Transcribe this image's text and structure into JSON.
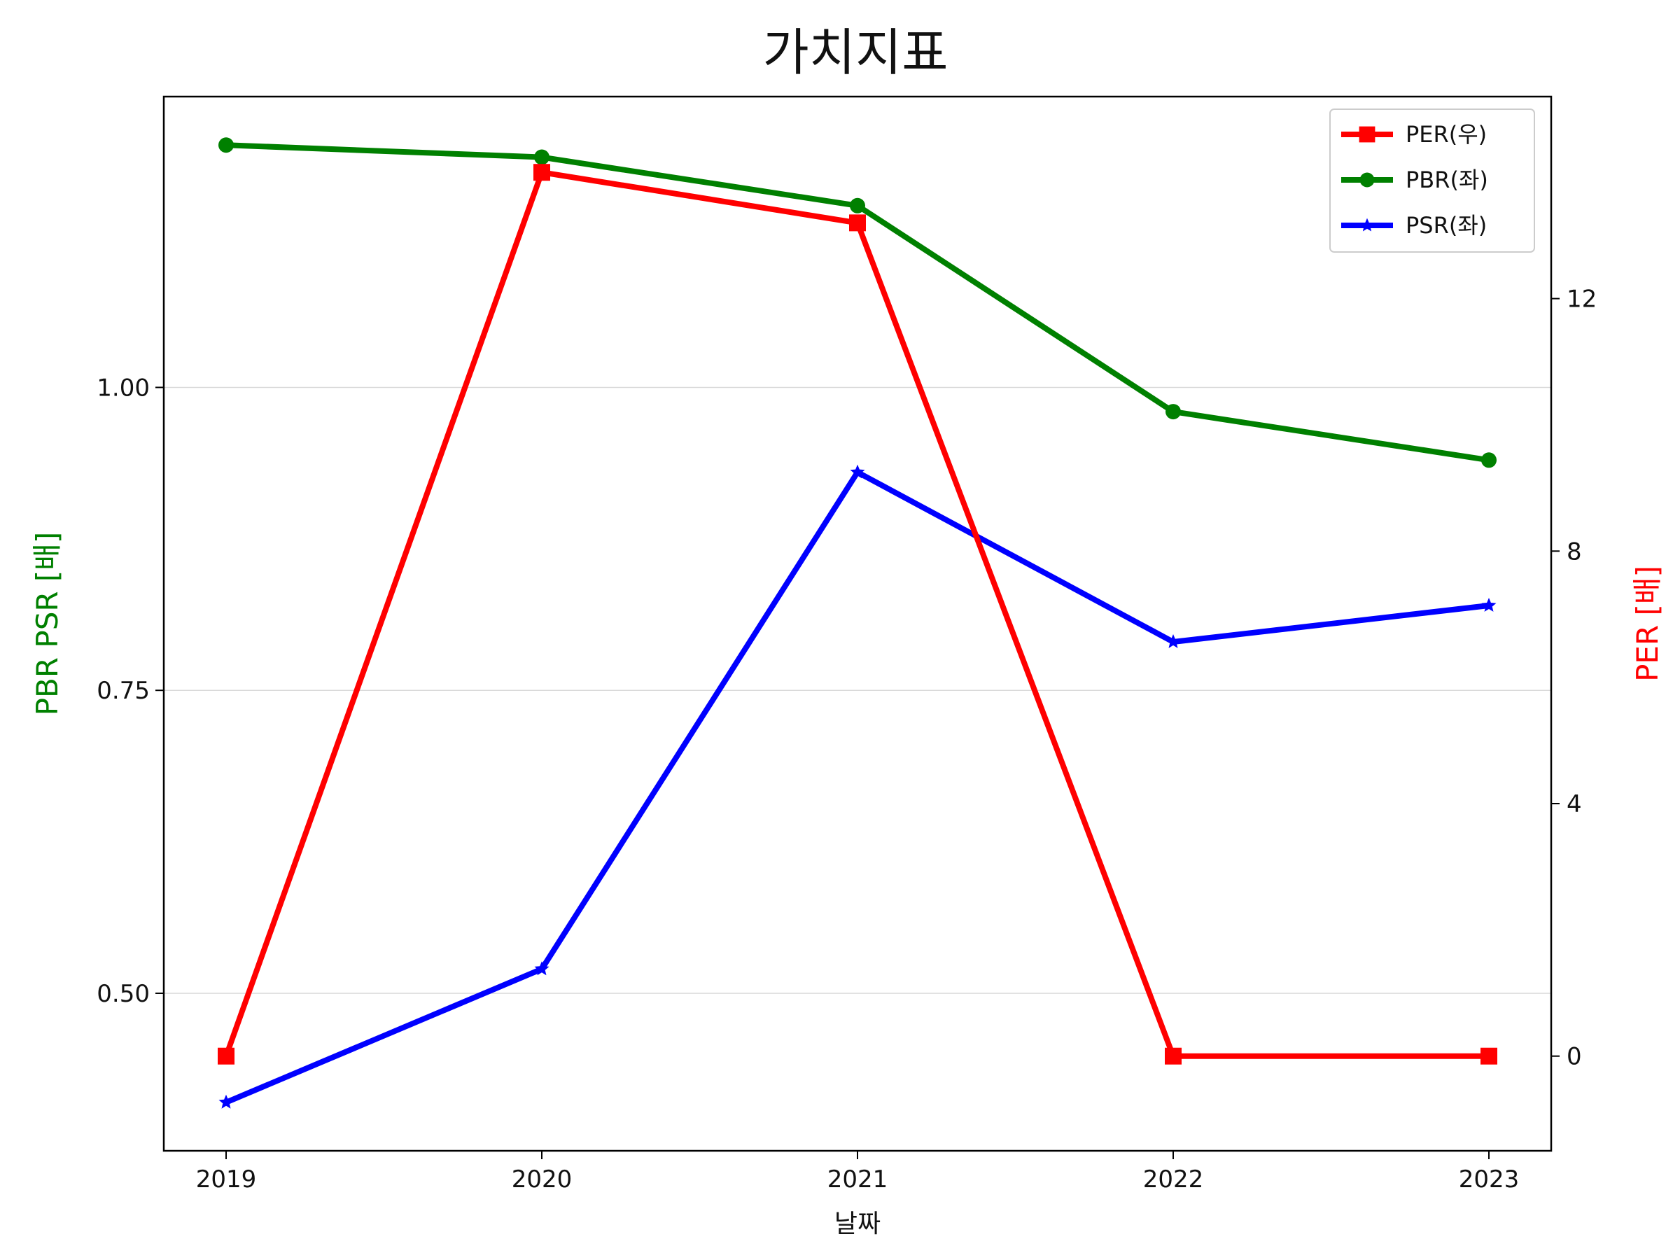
{
  "chart_data": {
    "type": "line",
    "title": "가치지표",
    "xlabel": "날짜",
    "ylabel_left": "PBR PSR [배]",
    "ylabel_right": "PER [배]",
    "categories": [
      "2019",
      "2020",
      "2021",
      "2022",
      "2023"
    ],
    "ylim_left": [
      0.37,
      1.24
    ],
    "ylim_right": [
      -1.5,
      15.2
    ],
    "left_ticks": [
      "0.50",
      "0.75",
      "1.00"
    ],
    "right_ticks": [
      "0",
      "4",
      "8",
      "12"
    ],
    "grid": "horizontal on left-axis ticks",
    "legend_position": "top-right",
    "series": [
      {
        "name": "PER(우)",
        "axis": "right",
        "color": "#ff0000",
        "marker": "square",
        "values": [
          0,
          14.0,
          13.2,
          0,
          0
        ]
      },
      {
        "name": "PBR(좌)",
        "axis": "left",
        "color": "#008000",
        "marker": "circle",
        "values": [
          1.2,
          1.19,
          1.15,
          0.98,
          0.94
        ]
      },
      {
        "name": "PSR(좌)",
        "axis": "left",
        "color": "#0000ff",
        "marker": "star",
        "values": [
          0.41,
          0.52,
          0.93,
          0.79,
          0.82
        ]
      }
    ],
    "colors": {
      "left_label": "#008000",
      "right_label": "#ff0000",
      "axis": "#000000",
      "grid": "#d9d9d9"
    }
  }
}
